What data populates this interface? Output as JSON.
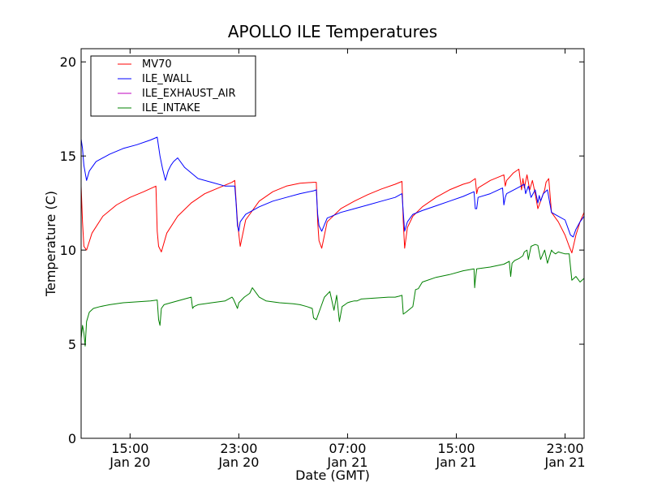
{
  "chart_data": {
    "type": "line",
    "title": "APOLLO ILE Temperatures",
    "xlabel": "Date (GMT)",
    "ylabel": "Temperature (C)",
    "ylim": [
      0,
      20.7
    ],
    "xlim_hours": [
      11.4,
      48.4
    ],
    "y_ticks": [
      {
        "value": 0,
        "label": "0"
      },
      {
        "value": 5,
        "label": "5"
      },
      {
        "value": 10,
        "label": "10"
      },
      {
        "value": 15,
        "label": "15"
      },
      {
        "value": 20,
        "label": "20"
      }
    ],
    "x_ticks": [
      {
        "hour": 15,
        "time": "15:00",
        "date": "Jan 20"
      },
      {
        "hour": 23,
        "time": "23:00",
        "date": "Jan 20"
      },
      {
        "hour": 31,
        "time": "07:00",
        "date": "Jan 21"
      },
      {
        "hour": 39,
        "time": "15:00",
        "date": "Jan 21"
      },
      {
        "hour": 47,
        "time": "23:00",
        "date": "Jan 21"
      }
    ],
    "legend_position": "top-left",
    "series": [
      {
        "name": "MV70",
        "color": "#ff0000",
        "x": [
          11.4,
          11.5,
          11.6,
          11.8,
          12.2,
          13.0,
          14.0,
          15.0,
          16.0,
          16.9,
          17.0,
          17.1,
          17.3,
          17.7,
          18.5,
          19.5,
          20.5,
          21.5,
          22.5,
          22.7,
          22.9,
          23.1,
          23.5,
          24.5,
          25.5,
          26.5,
          27.5,
          28.5,
          28.7,
          28.8,
          28.9,
          29.1,
          29.5,
          30.5,
          31.5,
          32.5,
          33.5,
          34.5,
          35.0,
          35.1,
          35.2,
          35.4,
          35.8,
          36.5,
          37.5,
          38.5,
          39.5,
          40.0,
          40.4,
          40.5,
          40.6,
          41.5,
          42.5,
          42.6,
          42.7,
          43.2,
          43.6,
          43.8,
          43.9,
          44.0,
          44.2,
          44.4,
          44.6,
          44.8,
          45.0,
          45.5,
          45.6,
          45.8,
          46.0,
          46.5,
          47.0,
          47.3,
          47.5,
          47.8,
          48.1,
          48.4
        ],
        "y": [
          13.4,
          11.5,
          10.2,
          10.0,
          10.9,
          11.8,
          12.4,
          12.8,
          13.1,
          13.4,
          11.0,
          10.2,
          9.9,
          10.9,
          11.8,
          12.5,
          13.0,
          13.3,
          13.6,
          13.7,
          11.5,
          10.2,
          11.6,
          12.6,
          13.1,
          13.4,
          13.55,
          13.6,
          13.6,
          11.5,
          10.5,
          10.1,
          11.5,
          12.2,
          12.6,
          12.95,
          13.25,
          13.5,
          13.65,
          11.5,
          10.1,
          11.2,
          11.8,
          12.3,
          12.8,
          13.2,
          13.5,
          13.6,
          13.8,
          13.0,
          13.3,
          13.7,
          14.0,
          13.4,
          13.7,
          14.1,
          14.3,
          13.2,
          13.8,
          13.3,
          14.0,
          13.2,
          13.7,
          13.0,
          12.2,
          13.2,
          13.6,
          13.8,
          12.0,
          11.5,
          10.8,
          10.2,
          9.85,
          10.8,
          11.5,
          12.0
        ]
      },
      {
        "name": "ILE_WALL",
        "color": "#0000ff",
        "x": [
          11.4,
          11.5,
          11.6,
          11.8,
          12.0,
          12.5,
          13.5,
          14.5,
          15.5,
          16.5,
          17.0,
          17.2,
          17.4,
          17.6,
          17.8,
          18.0,
          18.2,
          18.5,
          19.0,
          20.0,
          21.0,
          22.0,
          22.7,
          22.8,
          22.9,
          23.0,
          23.1,
          23.5,
          24.5,
          25.5,
          26.5,
          27.5,
          28.5,
          28.7,
          28.8,
          28.9,
          29.1,
          29.5,
          30.5,
          31.5,
          32.5,
          33.5,
          34.5,
          35.0,
          35.1,
          35.2,
          35.4,
          35.8,
          36.5,
          37.5,
          38.5,
          39.5,
          40.3,
          40.4,
          40.5,
          40.6,
          41.5,
          42.4,
          42.5,
          42.6,
          42.7,
          43.5,
          44.0,
          44.1,
          44.3,
          44.5,
          44.8,
          45.0,
          45.1,
          45.2,
          45.4,
          45.7,
          46.0,
          46.5,
          47.0,
          47.2,
          47.4,
          47.6,
          47.8,
          48.1,
          48.4
        ],
        "y": [
          15.9,
          15.4,
          14.5,
          13.7,
          14.2,
          14.7,
          15.1,
          15.4,
          15.6,
          15.85,
          16.0,
          15.0,
          14.3,
          13.7,
          14.2,
          14.5,
          14.7,
          14.9,
          14.4,
          13.8,
          13.6,
          13.4,
          13.4,
          12.5,
          11.3,
          11.0,
          11.5,
          11.9,
          12.3,
          12.6,
          12.8,
          13.0,
          13.15,
          13.2,
          11.9,
          11.3,
          11.0,
          11.7,
          12.0,
          12.2,
          12.4,
          12.6,
          12.8,
          13.0,
          12.0,
          11.0,
          11.5,
          11.9,
          12.1,
          12.35,
          12.6,
          12.85,
          13.1,
          12.2,
          12.2,
          12.8,
          13.0,
          13.3,
          12.4,
          12.8,
          13.0,
          13.3,
          13.5,
          13.0,
          13.4,
          12.8,
          13.2,
          12.5,
          12.9,
          12.6,
          13.0,
          13.2,
          12.0,
          11.8,
          11.6,
          11.2,
          10.8,
          10.7,
          11.1,
          11.5,
          11.8
        ]
      },
      {
        "name": "ILE_EXHAUST_AIR",
        "color": "#bf00bf",
        "x": [],
        "y": []
      },
      {
        "name": "ILE_INTAKE",
        "color": "#008000",
        "x": [
          11.4,
          11.5,
          11.6,
          11.7,
          11.8,
          12.0,
          12.3,
          12.8,
          13.5,
          14.5,
          15.5,
          16.5,
          17.0,
          17.1,
          17.2,
          17.3,
          17.5,
          18.0,
          19.0,
          19.5,
          19.6,
          19.7,
          20.0,
          21.0,
          22.0,
          22.5,
          22.6,
          22.9,
          23.0,
          23.4,
          23.8,
          24.0,
          24.5,
          25.0,
          26.0,
          27.0,
          27.5,
          28.0,
          28.4,
          28.5,
          28.7,
          29.0,
          29.3,
          29.7,
          30.0,
          30.2,
          30.4,
          30.6,
          30.8,
          31.0,
          31.2,
          31.5,
          31.7,
          32.0,
          33.0,
          34.0,
          34.5,
          34.8,
          35.0,
          35.1,
          35.3,
          35.8,
          36.0,
          36.2,
          36.5,
          37.5,
          38.5,
          39.5,
          40.3,
          40.35,
          40.4,
          40.5,
          41.5,
          42.5,
          42.9,
          43.0,
          43.1,
          43.3,
          43.6,
          43.9,
          44.0,
          44.2,
          44.3,
          44.5,
          44.8,
          45.0,
          45.2,
          45.5,
          45.7,
          46.0,
          46.1,
          46.3,
          46.5,
          47.0,
          47.3,
          47.5,
          47.8,
          48.1,
          48.4
        ],
        "y": [
          5.3,
          6.0,
          5.6,
          4.9,
          6.2,
          6.7,
          6.9,
          7.0,
          7.1,
          7.2,
          7.25,
          7.3,
          7.35,
          6.3,
          6.0,
          6.9,
          7.1,
          7.2,
          7.4,
          7.5,
          6.9,
          7.0,
          7.1,
          7.2,
          7.3,
          7.5,
          7.4,
          6.9,
          7.2,
          7.5,
          7.7,
          8.0,
          7.5,
          7.3,
          7.2,
          7.15,
          7.1,
          7.0,
          6.9,
          6.4,
          6.3,
          6.9,
          7.5,
          7.8,
          6.8,
          7.6,
          6.2,
          7.0,
          7.1,
          7.2,
          7.25,
          7.3,
          7.3,
          7.4,
          7.45,
          7.5,
          7.5,
          7.55,
          7.6,
          6.6,
          6.7,
          7.0,
          7.9,
          7.95,
          8.3,
          8.55,
          8.7,
          8.9,
          9.0,
          8.0,
          8.4,
          9.0,
          9.1,
          9.25,
          9.4,
          8.6,
          9.3,
          9.45,
          9.55,
          9.7,
          9.9,
          10.0,
          9.5,
          10.2,
          10.3,
          10.25,
          9.5,
          10.0,
          9.3,
          10.0,
          9.9,
          9.8,
          9.9,
          9.8,
          9.8,
          8.4,
          8.6,
          8.3,
          8.5
        ]
      }
    ]
  }
}
